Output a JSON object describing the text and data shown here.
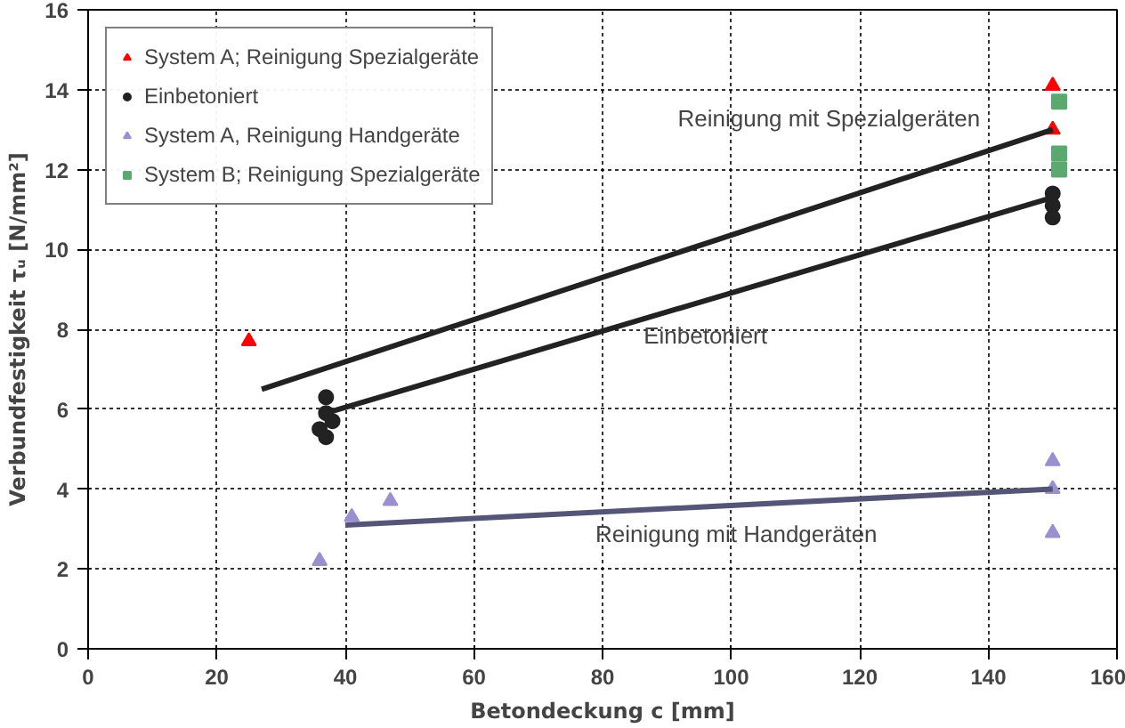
{
  "chart_data": {
    "type": "scatter",
    "xlabel": "Betondeckung c [mm]",
    "ylabel": "Verbundfestigkeit τᵤ [N/mm²]",
    "xlim": [
      0,
      160
    ],
    "ylim": [
      0,
      16
    ],
    "xticks": [
      0,
      20,
      40,
      60,
      80,
      100,
      120,
      140,
      160
    ],
    "yticks": [
      0,
      2,
      4,
      6,
      8,
      10,
      12,
      14,
      16
    ],
    "grid": true,
    "legend": "top left",
    "series": [
      {
        "name": "System A; Reinigung Spezialgeräte",
        "color": "#ff0000",
        "marker": "triangle",
        "x": [
          25,
          150,
          150
        ],
        "values": [
          7.7,
          13.0,
          14.1
        ]
      },
      {
        "name": "Einbetoniert",
        "color": "#222222",
        "marker": "circle",
        "x": [
          37,
          37,
          36,
          38,
          37,
          150,
          150,
          150
        ],
        "values": [
          6.3,
          5.9,
          5.5,
          5.7,
          5.3,
          11.4,
          11.1,
          10.8
        ]
      },
      {
        "name": "System A, Reinigung Handgeräte",
        "color": "#9b8fd0",
        "marker": "triangle",
        "x": [
          36,
          41,
          47,
          150,
          150,
          150
        ],
        "values": [
          2.2,
          3.3,
          3.7,
          4.7,
          4.0,
          2.9
        ]
      },
      {
        "name": "System B; Reinigung Spezialgeräte",
        "color": "#5aaa70",
        "marker": "square",
        "x": [
          151,
          151,
          151
        ],
        "values": [
          13.7,
          12.4,
          12.0
        ]
      },
      {
        "type": "line",
        "color": "#222222",
        "x": [
          27,
          150
        ],
        "values": [
          6.5,
          13.0
        ]
      },
      {
        "type": "line",
        "color": "#222222",
        "x": [
          37,
          150
        ],
        "values": [
          5.9,
          11.3
        ]
      },
      {
        "type": "line",
        "color": "#555577",
        "x": [
          40,
          150
        ],
        "values": [
          3.1,
          4.0
        ]
      }
    ],
    "annotations": [
      "Reinigung mit Spezialgeräten",
      "Einbetoniert",
      "Reinigung mit Handgeräten"
    ]
  }
}
